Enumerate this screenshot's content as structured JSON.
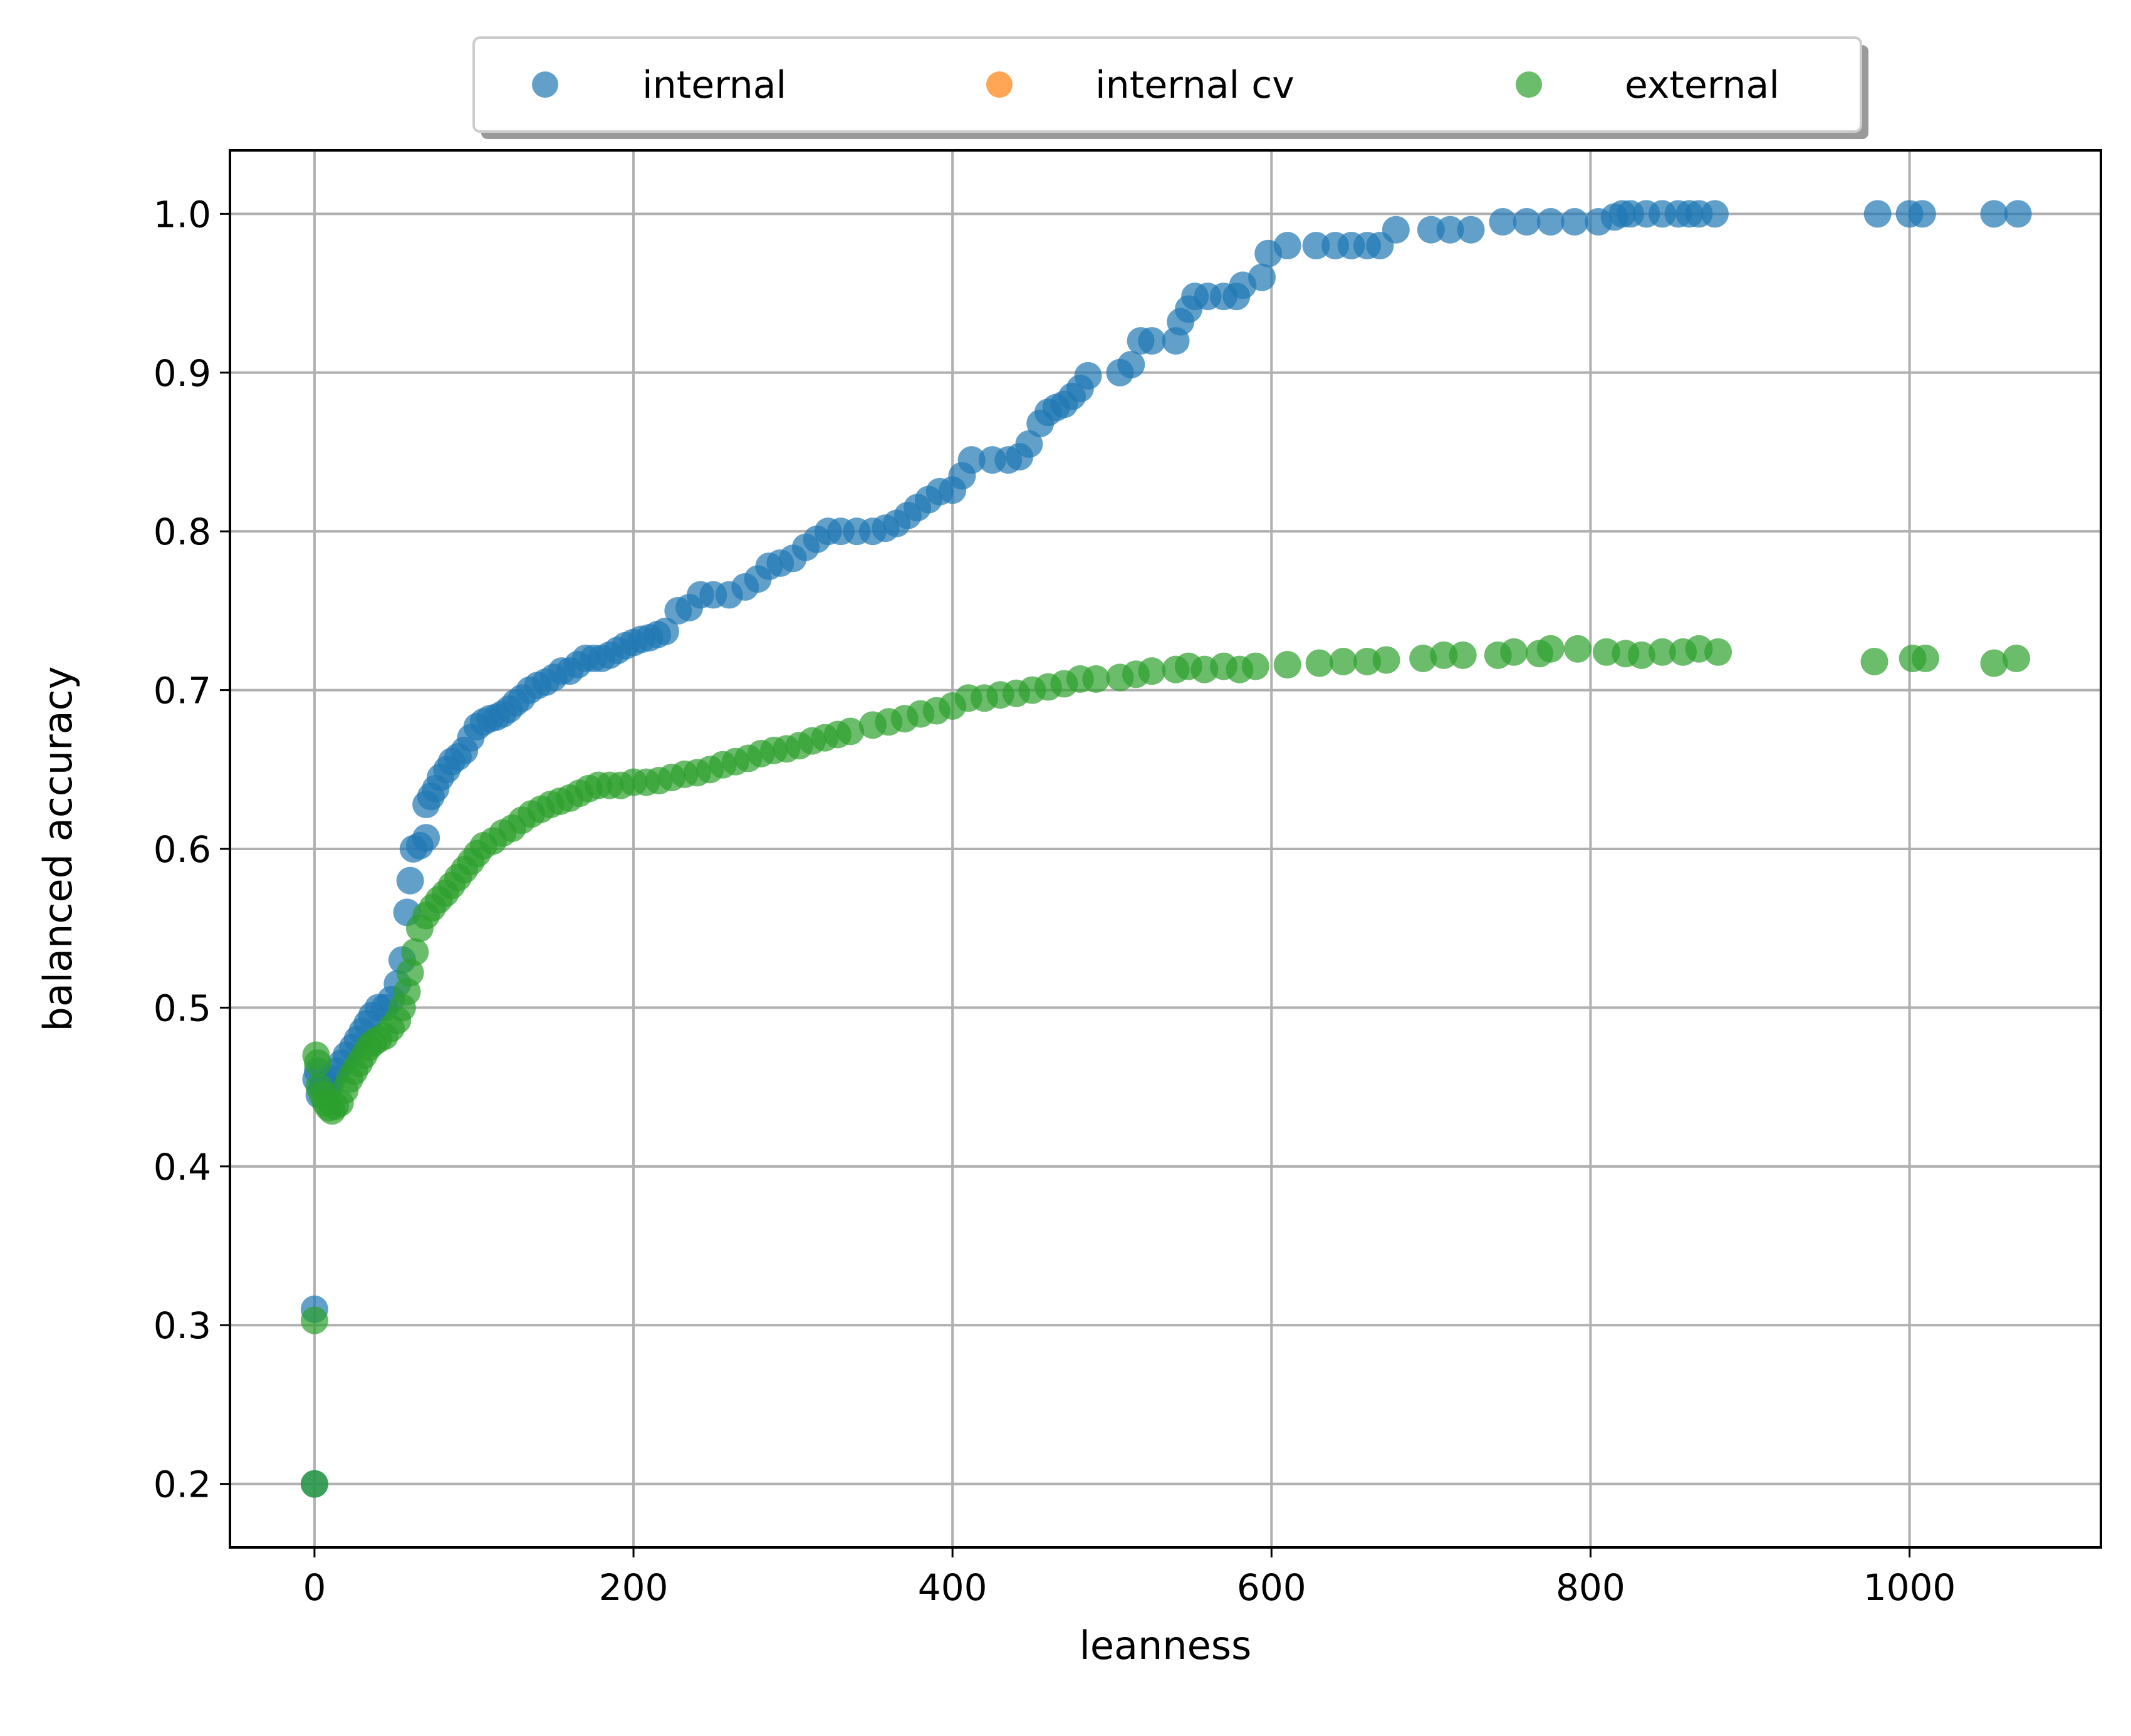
{
  "chart_data": {
    "type": "scatter",
    "title": "",
    "xlabel": "leanness",
    "ylabel": "balanced accuracy",
    "xlim": [
      -53,
      1120
    ],
    "ylim": [
      0.16,
      1.04
    ],
    "xticks": [
      0,
      200,
      400,
      600,
      800,
      1000
    ],
    "yticks": [
      0.2,
      0.3,
      0.4,
      0.5,
      0.6,
      0.7,
      0.8,
      0.9,
      1.0
    ],
    "xtick_labels": [
      "0",
      "200",
      "400",
      "600",
      "800",
      "1000"
    ],
    "ytick_labels": [
      "0.2",
      "0.3",
      "0.4",
      "0.5",
      "0.6",
      "0.7",
      "0.8",
      "0.9",
      "1.0"
    ],
    "grid": true,
    "legend": {
      "placement": "top-center-outside",
      "columns": 3
    },
    "series": [
      {
        "name": "internal",
        "color": "#1f77b4",
        "points": [
          [
            0,
            0.2
          ],
          [
            0,
            0.31
          ],
          [
            1,
            0.455
          ],
          [
            2,
            0.46
          ],
          [
            3,
            0.445
          ],
          [
            5,
            0.45
          ],
          [
            7,
            0.452
          ],
          [
            9,
            0.45
          ],
          [
            11,
            0.455
          ],
          [
            14,
            0.46
          ],
          [
            17,
            0.465
          ],
          [
            20,
            0.47
          ],
          [
            24,
            0.475
          ],
          [
            27,
            0.48
          ],
          [
            30,
            0.485
          ],
          [
            33,
            0.49
          ],
          [
            36,
            0.495
          ],
          [
            40,
            0.5
          ],
          [
            44,
            0.5
          ],
          [
            48,
            0.505
          ],
          [
            52,
            0.515
          ],
          [
            55,
            0.53
          ],
          [
            58,
            0.56
          ],
          [
            60,
            0.58
          ],
          [
            62,
            0.6
          ],
          [
            66,
            0.602
          ],
          [
            70,
            0.607
          ],
          [
            70,
            0.628
          ],
          [
            73,
            0.633
          ],
          [
            76,
            0.638
          ],
          [
            79,
            0.645
          ],
          [
            83,
            0.65
          ],
          [
            86,
            0.655
          ],
          [
            90,
            0.658
          ],
          [
            94,
            0.662
          ],
          [
            98,
            0.67
          ],
          [
            102,
            0.677
          ],
          [
            106,
            0.68
          ],
          [
            110,
            0.682
          ],
          [
            114,
            0.683
          ],
          [
            118,
            0.685
          ],
          [
            122,
            0.688
          ],
          [
            126,
            0.692
          ],
          [
            130,
            0.695
          ],
          [
            135,
            0.7
          ],
          [
            140,
            0.703
          ],
          [
            145,
            0.705
          ],
          [
            150,
            0.708
          ],
          [
            155,
            0.712
          ],
          [
            160,
            0.712
          ],
          [
            165,
            0.716
          ],
          [
            170,
            0.72
          ],
          [
            175,
            0.72
          ],
          [
            180,
            0.72
          ],
          [
            185,
            0.722
          ],
          [
            190,
            0.725
          ],
          [
            195,
            0.728
          ],
          [
            200,
            0.73
          ],
          [
            205,
            0.732
          ],
          [
            210,
            0.733
          ],
          [
            215,
            0.735
          ],
          [
            220,
            0.737
          ],
          [
            228,
            0.75
          ],
          [
            235,
            0.752
          ],
          [
            242,
            0.76
          ],
          [
            250,
            0.76
          ],
          [
            260,
            0.76
          ],
          [
            270,
            0.765
          ],
          [
            278,
            0.77
          ],
          [
            285,
            0.778
          ],
          [
            292,
            0.78
          ],
          [
            300,
            0.783
          ],
          [
            308,
            0.79
          ],
          [
            315,
            0.795
          ],
          [
            322,
            0.8
          ],
          [
            330,
            0.8
          ],
          [
            340,
            0.8
          ],
          [
            350,
            0.8
          ],
          [
            358,
            0.802
          ],
          [
            365,
            0.805
          ],
          [
            372,
            0.81
          ],
          [
            378,
            0.815
          ],
          [
            385,
            0.82
          ],
          [
            392,
            0.825
          ],
          [
            400,
            0.826
          ],
          [
            406,
            0.835
          ],
          [
            412,
            0.845
          ],
          [
            425,
            0.845
          ],
          [
            435,
            0.845
          ],
          [
            442,
            0.847
          ],
          [
            448,
            0.855
          ],
          [
            455,
            0.868
          ],
          [
            460,
            0.875
          ],
          [
            465,
            0.878
          ],
          [
            470,
            0.88
          ],
          [
            475,
            0.885
          ],
          [
            480,
            0.89
          ],
          [
            485,
            0.898
          ],
          [
            505,
            0.9
          ],
          [
            512,
            0.905
          ],
          [
            518,
            0.92
          ],
          [
            525,
            0.92
          ],
          [
            540,
            0.92
          ],
          [
            543,
            0.932
          ],
          [
            548,
            0.94
          ],
          [
            552,
            0.948
          ],
          [
            560,
            0.948
          ],
          [
            570,
            0.948
          ],
          [
            578,
            0.948
          ],
          [
            582,
            0.955
          ],
          [
            594,
            0.96
          ],
          [
            598,
            0.975
          ],
          [
            610,
            0.98
          ],
          [
            628,
            0.98
          ],
          [
            640,
            0.98
          ],
          [
            650,
            0.98
          ],
          [
            660,
            0.98
          ],
          [
            668,
            0.98
          ],
          [
            678,
            0.99
          ],
          [
            700,
            0.99
          ],
          [
            712,
            0.99
          ],
          [
            725,
            0.99
          ],
          [
            745,
            0.995
          ],
          [
            760,
            0.995
          ],
          [
            775,
            0.995
          ],
          [
            790,
            0.995
          ],
          [
            805,
            0.995
          ],
          [
            815,
            0.998
          ],
          [
            820,
            1.0
          ],
          [
            825,
            1.0
          ],
          [
            835,
            1.0
          ],
          [
            845,
            1.0
          ],
          [
            855,
            1.0
          ],
          [
            862,
            1.0
          ],
          [
            868,
            1.0
          ],
          [
            878,
            1.0
          ],
          [
            980,
            1.0
          ],
          [
            1000,
            1.0
          ],
          [
            1008,
            1.0
          ],
          [
            1053,
            1.0
          ],
          [
            1068,
            1.0
          ]
        ]
      },
      {
        "name": "internal cv",
        "color": "#ff7f0e",
        "points": []
      },
      {
        "name": "external",
        "color": "#2ca02c",
        "points": [
          [
            0,
            0.2
          ],
          [
            0,
            0.303
          ],
          [
            1,
            0.47
          ],
          [
            2,
            0.465
          ],
          [
            3,
            0.45
          ],
          [
            5,
            0.445
          ],
          [
            7,
            0.44
          ],
          [
            9,
            0.437
          ],
          [
            11,
            0.435
          ],
          [
            13,
            0.438
          ],
          [
            16,
            0.44
          ],
          [
            19,
            0.448
          ],
          [
            22,
            0.455
          ],
          [
            25,
            0.46
          ],
          [
            28,
            0.465
          ],
          [
            31,
            0.47
          ],
          [
            34,
            0.475
          ],
          [
            37,
            0.478
          ],
          [
            40,
            0.48
          ],
          [
            44,
            0.482
          ],
          [
            48,
            0.487
          ],
          [
            52,
            0.492
          ],
          [
            55,
            0.5
          ],
          [
            58,
            0.51
          ],
          [
            60,
            0.522
          ],
          [
            63,
            0.535
          ],
          [
            66,
            0.55
          ],
          [
            70,
            0.558
          ],
          [
            74,
            0.563
          ],
          [
            78,
            0.568
          ],
          [
            82,
            0.572
          ],
          [
            86,
            0.577
          ],
          [
            90,
            0.582
          ],
          [
            94,
            0.587
          ],
          [
            98,
            0.592
          ],
          [
            102,
            0.597
          ],
          [
            106,
            0.602
          ],
          [
            112,
            0.605
          ],
          [
            118,
            0.61
          ],
          [
            124,
            0.613
          ],
          [
            130,
            0.618
          ],
          [
            136,
            0.622
          ],
          [
            142,
            0.625
          ],
          [
            148,
            0.628
          ],
          [
            154,
            0.63
          ],
          [
            160,
            0.632
          ],
          [
            166,
            0.635
          ],
          [
            172,
            0.638
          ],
          [
            178,
            0.64
          ],
          [
            185,
            0.64
          ],
          [
            192,
            0.64
          ],
          [
            200,
            0.642
          ],
          [
            208,
            0.642
          ],
          [
            216,
            0.643
          ],
          [
            224,
            0.645
          ],
          [
            232,
            0.647
          ],
          [
            240,
            0.648
          ],
          [
            248,
            0.65
          ],
          [
            256,
            0.653
          ],
          [
            264,
            0.655
          ],
          [
            272,
            0.657
          ],
          [
            280,
            0.66
          ],
          [
            288,
            0.662
          ],
          [
            296,
            0.663
          ],
          [
            304,
            0.665
          ],
          [
            312,
            0.668
          ],
          [
            320,
            0.67
          ],
          [
            328,
            0.672
          ],
          [
            336,
            0.674
          ],
          [
            350,
            0.678
          ],
          [
            360,
            0.68
          ],
          [
            370,
            0.682
          ],
          [
            380,
            0.685
          ],
          [
            390,
            0.687
          ],
          [
            400,
            0.69
          ],
          [
            410,
            0.695
          ],
          [
            420,
            0.695
          ],
          [
            430,
            0.697
          ],
          [
            440,
            0.698
          ],
          [
            450,
            0.7
          ],
          [
            460,
            0.702
          ],
          [
            470,
            0.704
          ],
          [
            480,
            0.707
          ],
          [
            490,
            0.707
          ],
          [
            505,
            0.708
          ],
          [
            515,
            0.71
          ],
          [
            525,
            0.712
          ],
          [
            540,
            0.713
          ],
          [
            548,
            0.715
          ],
          [
            558,
            0.713
          ],
          [
            570,
            0.715
          ],
          [
            580,
            0.713
          ],
          [
            590,
            0.715
          ],
          [
            610,
            0.716
          ],
          [
            630,
            0.717
          ],
          [
            645,
            0.718
          ],
          [
            660,
            0.718
          ],
          [
            672,
            0.719
          ],
          [
            695,
            0.72
          ],
          [
            708,
            0.722
          ],
          [
            720,
            0.722
          ],
          [
            742,
            0.722
          ],
          [
            752,
            0.724
          ],
          [
            768,
            0.723
          ],
          [
            775,
            0.726
          ],
          [
            792,
            0.726
          ],
          [
            810,
            0.724
          ],
          [
            822,
            0.723
          ],
          [
            832,
            0.722
          ],
          [
            845,
            0.724
          ],
          [
            858,
            0.724
          ],
          [
            868,
            0.726
          ],
          [
            880,
            0.724
          ],
          [
            978,
            0.718
          ],
          [
            1002,
            0.72
          ],
          [
            1010,
            0.72
          ],
          [
            1053,
            0.717
          ],
          [
            1067,
            0.72
          ]
        ]
      }
    ]
  }
}
